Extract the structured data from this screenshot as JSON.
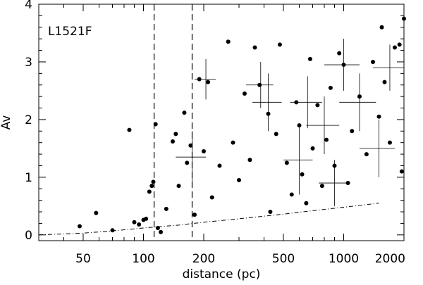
{
  "chart_data": {
    "type": "scatter",
    "title": "",
    "panel_label": "L1521F",
    "xlabel": "distance (pc)",
    "ylabel": "Av",
    "x_scale": "log",
    "xlim": [
      30,
      2000
    ],
    "ylim": [
      -0.1,
      4.0
    ],
    "x_ticks": [
      50,
      100,
      200,
      500,
      1000,
      2000
    ],
    "x_tick_labels": [
      "50",
      "100",
      "200",
      "500",
      "1000",
      "2000"
    ],
    "x_minor_ticks": [
      30,
      40,
      60,
      70,
      80,
      90,
      300,
      400,
      600,
      700,
      800,
      900
    ],
    "y_ticks": [
      0,
      1,
      2,
      3,
      4
    ],
    "y_tick_labels": [
      "0",
      "1",
      "2",
      "3",
      "4"
    ],
    "y_minor_ticks": [
      0.2,
      0.4,
      0.6,
      0.8,
      1.2,
      1.4,
      1.6,
      1.8,
      2.2,
      2.4,
      2.6,
      2.8,
      3.2,
      3.4,
      3.6,
      3.8
    ],
    "grid": false,
    "vertical_lines": [
      {
        "x": 113,
        "style": "dashed"
      },
      {
        "x": 175,
        "style": "dashed"
      }
    ],
    "curve": {
      "style": "dash-dot",
      "points": [
        [
          30,
          0.0
        ],
        [
          50,
          0.03
        ],
        [
          70,
          0.07
        ],
        [
          100,
          0.12
        ],
        [
          150,
          0.17
        ],
        [
          200,
          0.22
        ],
        [
          300,
          0.28
        ],
        [
          500,
          0.36
        ],
        [
          700,
          0.42
        ],
        [
          1000,
          0.48
        ],
        [
          1500,
          0.55
        ]
      ]
    },
    "points": [
      [
        48,
        0.15
      ],
      [
        58,
        0.38
      ],
      [
        70,
        0.08
      ],
      [
        85,
        1.82
      ],
      [
        90,
        0.22
      ],
      [
        95,
        0.18
      ],
      [
        100,
        0.26
      ],
      [
        103,
        0.28
      ],
      [
        107,
        0.75
      ],
      [
        110,
        0.85
      ],
      [
        112,
        0.92
      ],
      [
        115,
        1.92
      ],
      [
        118,
        0.12
      ],
      [
        122,
        0.05
      ],
      [
        130,
        0.45
      ],
      [
        140,
        1.62
      ],
      [
        145,
        1.75
      ],
      [
        150,
        0.85
      ],
      [
        160,
        2.12
      ],
      [
        165,
        1.25
      ],
      [
        172,
        1.55
      ],
      [
        180,
        0.35
      ],
      [
        190,
        2.7
      ],
      [
        200,
        1.45
      ],
      [
        210,
        2.65
      ],
      [
        220,
        0.65
      ],
      [
        240,
        1.2
      ],
      [
        265,
        3.35
      ],
      [
        280,
        1.6
      ],
      [
        300,
        0.95
      ],
      [
        320,
        2.45
      ],
      [
        340,
        1.3
      ],
      [
        360,
        3.25
      ],
      [
        380,
        2.6
      ],
      [
        420,
        2.1
      ],
      [
        430,
        0.4
      ],
      [
        460,
        1.75
      ],
      [
        480,
        3.3
      ],
      [
        520,
        1.25
      ],
      [
        550,
        0.7
      ],
      [
        580,
        2.3
      ],
      [
        600,
        1.9
      ],
      [
        620,
        1.05
      ],
      [
        650,
        0.55
      ],
      [
        680,
        3.05
      ],
      [
        700,
        1.5
      ],
      [
        740,
        2.25
      ],
      [
        780,
        0.85
      ],
      [
        820,
        1.65
      ],
      [
        860,
        2.55
      ],
      [
        900,
        1.2
      ],
      [
        950,
        3.15
      ],
      [
        1000,
        2.95
      ],
      [
        1050,
        0.9
      ],
      [
        1100,
        1.8
      ],
      [
        1200,
        2.4
      ],
      [
        1300,
        1.4
      ],
      [
        1400,
        3.0
      ],
      [
        1500,
        2.05
      ],
      [
        1550,
        3.6
      ],
      [
        1600,
        2.65
      ],
      [
        1700,
        1.6
      ],
      [
        1800,
        3.25
      ],
      [
        1900,
        3.3
      ],
      [
        1950,
        1.1
      ],
      [
        2000,
        3.75
      ]
    ],
    "error_bars": [
      {
        "x": 205,
        "y": 2.7,
        "xerr": 25,
        "yerr": 0.35
      },
      {
        "x": 175,
        "y": 1.35,
        "xerr": 30,
        "yerr": 0.45
      },
      {
        "x": 385,
        "y": 2.6,
        "xerr": 60,
        "yerr": 0.4
      },
      {
        "x": 420,
        "y": 2.3,
        "xerr": 70,
        "yerr": 0.5
      },
      {
        "x": 660,
        "y": 2.3,
        "xerr": 120,
        "yerr": 0.45
      },
      {
        "x": 800,
        "y": 1.9,
        "xerr": 150,
        "yerr": 0.5
      },
      {
        "x": 1000,
        "y": 2.95,
        "xerr": 200,
        "yerr": 0.45
      },
      {
        "x": 1200,
        "y": 2.3,
        "xerr": 250,
        "yerr": 0.5
      },
      {
        "x": 1500,
        "y": 1.5,
        "xerr": 300,
        "yerr": 0.5
      },
      {
        "x": 1700,
        "y": 2.9,
        "xerr": 300,
        "yerr": 0.4
      },
      {
        "x": 600,
        "y": 1.3,
        "xerr": 100,
        "yerr": 0.6
      },
      {
        "x": 900,
        "y": 0.9,
        "xerr": 150,
        "yerr": 0.4
      }
    ]
  }
}
